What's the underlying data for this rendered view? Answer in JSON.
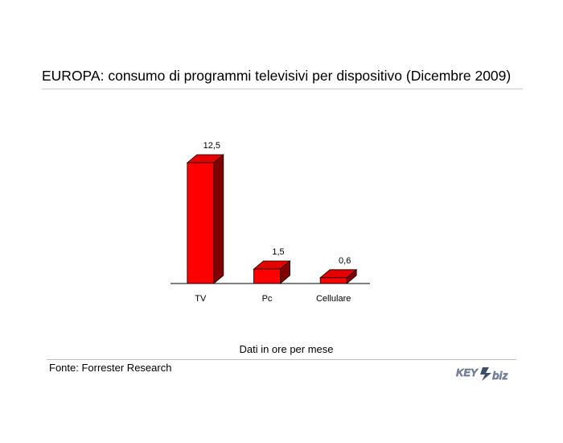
{
  "chart_data": {
    "type": "bar",
    "title": "EUROPA: consumo di programmi televisivi per dispositivo (Dicembre 2009)",
    "categories": [
      "TV",
      "Pc",
      "Cellulare"
    ],
    "values": [
      12.5,
      1.5,
      0.6
    ],
    "value_labels": [
      "12,5",
      "1,5",
      "0,6"
    ],
    "xlabel": "",
    "ylabel": "",
    "ylim": [
      0,
      12.5
    ],
    "grid": false,
    "legend": "none",
    "bar_front_color": "#ff0000",
    "bar_top_color": "#e50000",
    "bar_side_color": "#800000"
  },
  "note": "Dati in ore per mese",
  "source": "Fonte: Forrester Research",
  "logo": {
    "text_left": "KEY",
    "text_right": "biz",
    "color": "#7a8aa6"
  }
}
